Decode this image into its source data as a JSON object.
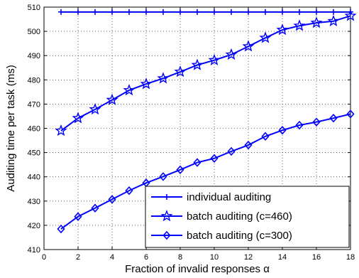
{
  "chart_data": {
    "type": "line",
    "title": "",
    "xlabel": "Fraction of invalid responses α",
    "ylabel": "Auditing time per task (ms)",
    "xlim": [
      0,
      18
    ],
    "ylim": [
      410,
      510
    ],
    "xticks": [
      0,
      2,
      4,
      6,
      8,
      10,
      12,
      14,
      16,
      18
    ],
    "yticks": [
      410,
      420,
      430,
      440,
      450,
      460,
      470,
      480,
      490,
      500,
      510
    ],
    "grid": true,
    "legend_position": "bottom-right",
    "x": [
      1,
      2,
      3,
      4,
      5,
      6,
      7,
      8,
      9,
      10,
      11,
      12,
      13,
      14,
      15,
      16,
      17,
      18
    ],
    "series": [
      {
        "name": "individual auditing",
        "marker": "plus",
        "color": "#0000ff",
        "values": [
          508,
          508,
          508,
          508,
          508,
          508,
          508,
          508,
          508,
          508,
          508,
          508,
          508,
          508,
          508,
          508,
          508,
          508
        ]
      },
      {
        "name": "batch auditing (c=460)",
        "marker": "star",
        "color": "#0000ff",
        "values": [
          459,
          464.2,
          467.8,
          471.7,
          475.7,
          478.3,
          480.6,
          483.3,
          486.1,
          488.1,
          490.4,
          493.8,
          497.3,
          500.6,
          502.3,
          503.5,
          504.2,
          506.4
        ]
      },
      {
        "name": "batch auditing (c=300)",
        "marker": "diamond",
        "color": "#0000ff",
        "values": [
          418.5,
          423.6,
          427.1,
          430.7,
          434.3,
          437.5,
          440.1,
          442.9,
          445.9,
          447.6,
          450.5,
          453.1,
          456.7,
          459.2,
          461.3,
          462.6,
          464.2,
          465.9
        ]
      }
    ]
  }
}
